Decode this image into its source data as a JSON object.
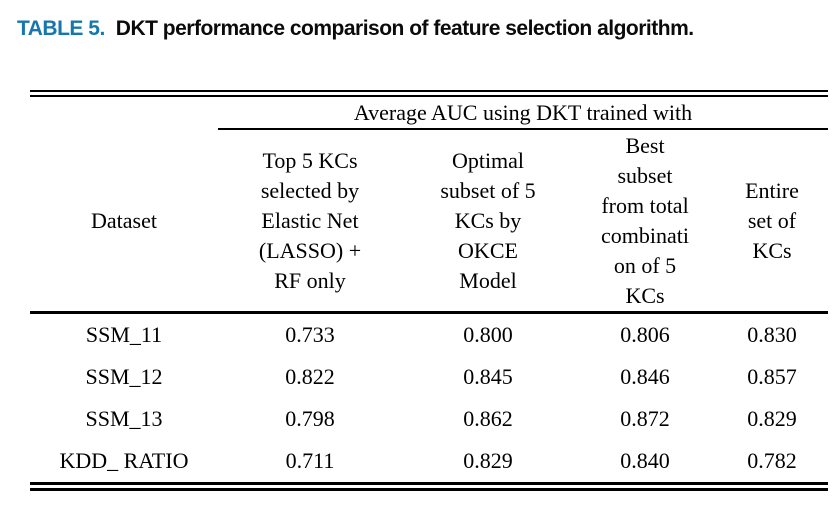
{
  "caption": {
    "label": "TABLE 5.",
    "text": "DKT performance comparison of feature selection algorithm."
  },
  "colors": {
    "caption_accent": "#1777AC",
    "text": "#000000",
    "background": "#ffffff"
  },
  "table": {
    "span_header": "Average AUC using DKT trained with",
    "columns": [
      {
        "header": "Dataset"
      },
      {
        "header": "Top 5 KCs\nselected by\nElastic Net\n(LASSO) +\nRF only"
      },
      {
        "header": "Optimal\nsubset of 5\nKCs by\nOKCE\nModel"
      },
      {
        "header": "Best\nsubset\nfrom total\ncombinati\non of 5\nKCs"
      },
      {
        "header": "Entire\nset of\nKCs"
      }
    ],
    "rows": [
      {
        "dataset": "SSM_11",
        "values": [
          "0.733",
          "0.800",
          "0.806",
          "0.830"
        ]
      },
      {
        "dataset": "SSM_12",
        "values": [
          "0.822",
          "0.845",
          "0.846",
          "0.857"
        ]
      },
      {
        "dataset": "SSM_13",
        "values": [
          "0.798",
          "0.862",
          "0.872",
          "0.829"
        ]
      },
      {
        "dataset": "KDD_ RATIO",
        "values": [
          "0.711",
          "0.829",
          "0.840",
          "0.782"
        ]
      }
    ]
  }
}
